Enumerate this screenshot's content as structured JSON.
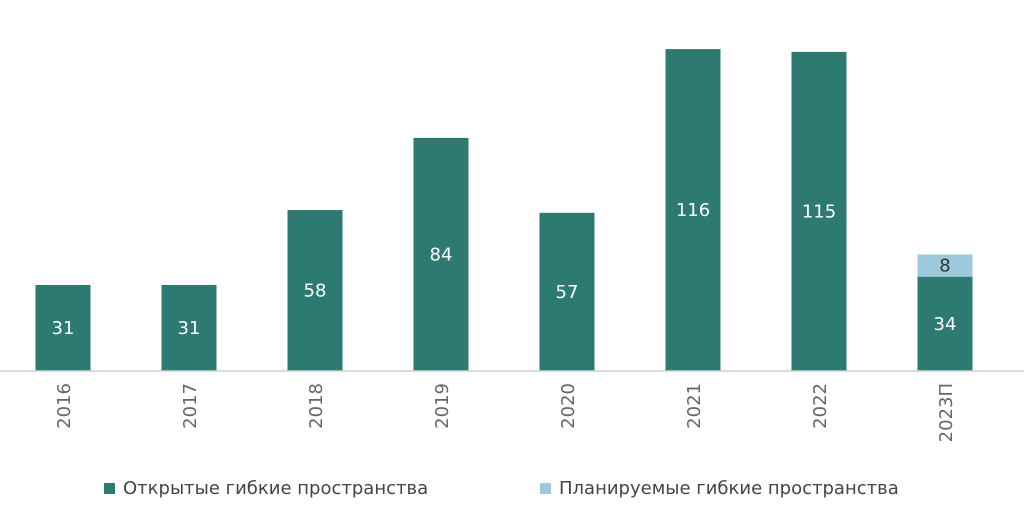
{
  "chart_data": {
    "type": "bar",
    "stacked": true,
    "categories": [
      "2016",
      "2017",
      "2018",
      "2019",
      "2020",
      "2021",
      "2022",
      "2023П"
    ],
    "series": [
      {
        "name": "Открытые гибкие пространства",
        "color": "#2c7a70",
        "values": [
          31,
          31,
          58,
          84,
          57,
          116,
          115,
          34
        ]
      },
      {
        "name": "Планируемые гибкие пространства",
        "color": "#9ec9dc",
        "values": [
          0,
          0,
          0,
          0,
          0,
          0,
          0,
          8
        ]
      }
    ],
    "ylim": [
      0,
      120
    ],
    "grid": false,
    "legend_position": "bottom"
  }
}
